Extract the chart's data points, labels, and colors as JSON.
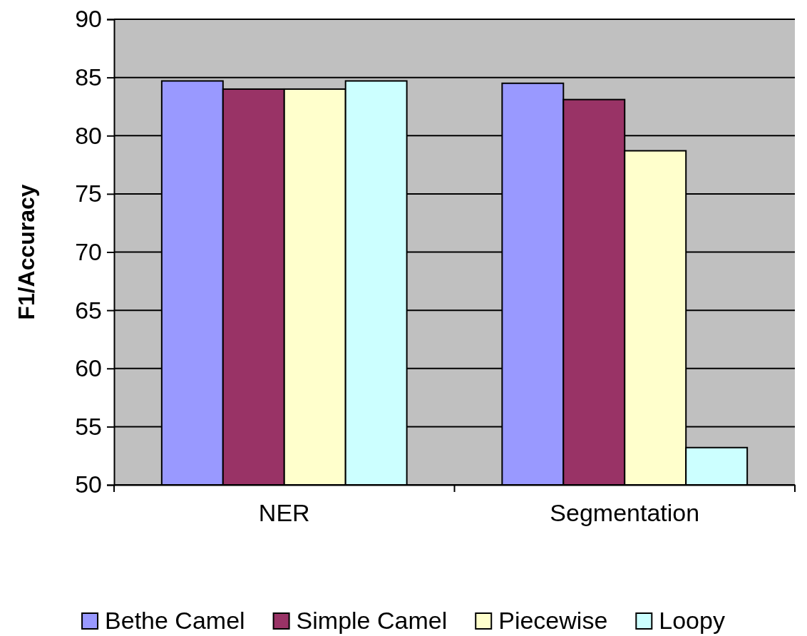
{
  "chart_data": {
    "type": "bar",
    "ylabel": "F1/Accuracy",
    "categories": [
      "NER",
      "Segmentation"
    ],
    "series": [
      {
        "name": "Bethe Camel",
        "color": "#9999ff",
        "values": [
          84.7,
          84.5
        ]
      },
      {
        "name": "Simple Camel",
        "color": "#993366",
        "values": [
          84.0,
          83.1
        ]
      },
      {
        "name": "Piecewise",
        "color": "#ffffcc",
        "values": [
          84.0,
          78.7
        ]
      },
      {
        "name": "Loopy",
        "color": "#ccffff",
        "values": [
          84.7,
          53.2
        ]
      }
    ],
    "ylim": [
      50,
      90
    ],
    "yticks": [
      50,
      55,
      60,
      65,
      70,
      75,
      80,
      85,
      90
    ],
    "grid": "y",
    "legend": "bottom"
  }
}
